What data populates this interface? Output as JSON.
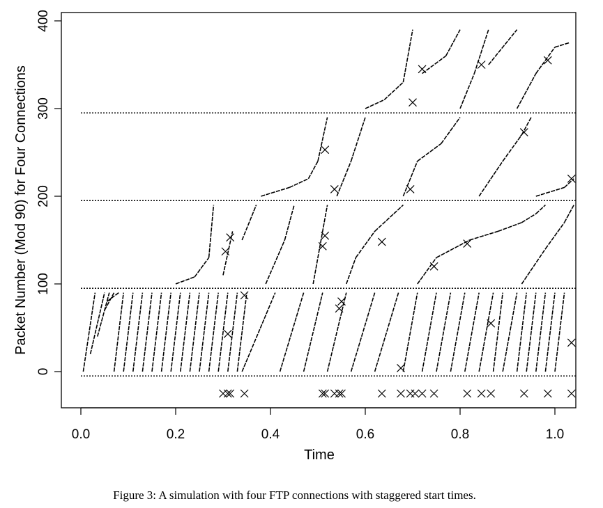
{
  "caption": "Figure 3: A simulation with four FTP connections with staggered start times.",
  "chart_data": {
    "type": "scatter",
    "xlabel": "Time",
    "ylabel": "Packet Number (Mod 90) for Four Connections",
    "xlim": [
      -0.04,
      1.04
    ],
    "ylim": [
      -40,
      405
    ],
    "x_ticks": [
      "0.0",
      "0.2",
      "0.4",
      "0.6",
      "0.8",
      "1.0"
    ],
    "y_ticks": [
      "0",
      "100",
      "200",
      "300",
      "400"
    ],
    "separators_y": [
      -5,
      95,
      195,
      295
    ],
    "drop_marker_y": -25,
    "connections": [
      {
        "offset": 0,
        "bursts": [
          [
            0.005,
            0.0,
            0.03
          ],
          [
            0.02,
            20,
            0.05
          ],
          [
            0.035,
            40,
            0.06
          ],
          [
            0.05,
            70,
            0.07
          ],
          [
            0.055,
            80,
            0.08
          ],
          [
            0.07,
            0,
            0.09
          ],
          [
            0.09,
            0,
            0.11
          ],
          [
            0.11,
            0,
            0.13
          ],
          [
            0.13,
            0,
            0.15
          ],
          [
            0.15,
            0,
            0.17
          ],
          [
            0.17,
            0,
            0.19
          ],
          [
            0.19,
            0,
            0.21
          ],
          [
            0.21,
            0,
            0.23
          ],
          [
            0.23,
            0,
            0.25
          ],
          [
            0.25,
            0,
            0.27
          ],
          [
            0.27,
            0,
            0.29
          ],
          [
            0.29,
            0,
            0.31
          ],
          [
            0.31,
            0,
            0.33
          ],
          [
            0.33,
            0,
            0.35
          ]
        ],
        "slow": [
          [
            0.34,
            0,
            0.41
          ],
          [
            0.42,
            0,
            0.47
          ],
          [
            0.47,
            0,
            0.51
          ],
          [
            0.52,
            0,
            0.56
          ],
          [
            0.57,
            0,
            0.62
          ],
          [
            0.62,
            0,
            0.67
          ],
          [
            0.68,
            0,
            0.71
          ],
          [
            0.72,
            0,
            0.75
          ],
          [
            0.75,
            0,
            0.78
          ],
          [
            0.78,
            0,
            0.81
          ],
          [
            0.81,
            0,
            0.84
          ],
          [
            0.84,
            0,
            0.87
          ],
          [
            0.87,
            0,
            0.89
          ],
          [
            0.89,
            0,
            0.92
          ],
          [
            0.92,
            0,
            0.94
          ],
          [
            0.94,
            0,
            0.96
          ],
          [
            0.96,
            0,
            0.98
          ],
          [
            0.98,
            0,
            1.0
          ],
          [
            1.0,
            0,
            1.02
          ]
        ],
        "drops": [
          [
            0.31,
            43
          ],
          [
            0.345,
            87
          ],
          [
            0.545,
            72
          ],
          [
            0.55,
            80
          ],
          [
            0.675,
            4
          ],
          [
            0.865,
            55
          ],
          [
            1.035,
            33
          ]
        ]
      },
      {
        "offset": 100,
        "segments": [
          [
            0.2,
            100,
            0.24,
            108
          ],
          [
            0.24,
            108,
            0.27,
            130
          ],
          [
            0.27,
            130,
            0.28,
            190
          ],
          [
            0.3,
            110,
            0.32,
            160
          ],
          [
            0.34,
            150,
            0.37,
            190
          ],
          [
            0.39,
            100,
            0.43,
            150
          ],
          [
            0.43,
            150,
            0.45,
            190
          ],
          [
            0.49,
            100,
            0.52,
            190
          ],
          [
            0.56,
            100,
            0.58,
            130
          ],
          [
            0.58,
            130,
            0.62,
            160
          ],
          [
            0.62,
            160,
            0.66,
            180
          ],
          [
            0.66,
            180,
            0.68,
            190
          ],
          [
            0.71,
            100,
            0.75,
            130
          ],
          [
            0.75,
            130,
            0.82,
            150
          ],
          [
            0.82,
            150,
            0.88,
            160
          ],
          [
            0.88,
            160,
            0.93,
            170
          ],
          [
            0.93,
            170,
            0.96,
            180
          ],
          [
            0.96,
            180,
            0.98,
            190
          ],
          [
            0.93,
            100,
            0.98,
            140
          ],
          [
            0.98,
            140,
            1.02,
            170
          ],
          [
            1.02,
            170,
            1.04,
            190
          ]
        ],
        "drops": [
          [
            0.305,
            137
          ],
          [
            0.315,
            153
          ],
          [
            0.51,
            143
          ],
          [
            0.515,
            155
          ],
          [
            0.635,
            148
          ],
          [
            0.815,
            146
          ],
          [
            0.745,
            120
          ]
        ]
      },
      {
        "offset": 200,
        "segments": [
          [
            0.38,
            200,
            0.44,
            210
          ],
          [
            0.44,
            210,
            0.48,
            220
          ],
          [
            0.48,
            220,
            0.5,
            240
          ],
          [
            0.5,
            240,
            0.52,
            290
          ],
          [
            0.54,
            200,
            0.57,
            240
          ],
          [
            0.57,
            240,
            0.6,
            290
          ],
          [
            0.68,
            200,
            0.71,
            240
          ],
          [
            0.71,
            240,
            0.76,
            260
          ],
          [
            0.76,
            260,
            0.8,
            290
          ],
          [
            0.84,
            200,
            0.89,
            240
          ],
          [
            0.89,
            240,
            0.93,
            270
          ],
          [
            0.93,
            270,
            0.95,
            290
          ],
          [
            0.96,
            200,
            1.02,
            210
          ],
          [
            1.02,
            210,
            1.04,
            220
          ]
        ],
        "drops": [
          [
            0.515,
            253
          ],
          [
            0.535,
            208
          ],
          [
            0.695,
            208
          ],
          [
            0.935,
            273
          ],
          [
            1.035,
            220
          ]
        ]
      },
      {
        "offset": 300,
        "segments": [
          [
            0.6,
            300,
            0.64,
            310
          ],
          [
            0.64,
            310,
            0.68,
            330
          ],
          [
            0.68,
            330,
            0.7,
            390
          ],
          [
            0.72,
            340,
            0.77,
            360
          ],
          [
            0.77,
            360,
            0.8,
            390
          ],
          [
            0.8,
            300,
            0.83,
            340
          ],
          [
            0.83,
            340,
            0.86,
            390
          ],
          [
            0.86,
            350,
            0.92,
            390
          ],
          [
            0.92,
            300,
            0.96,
            340
          ],
          [
            0.96,
            340,
            1.0,
            370
          ],
          [
            1.0,
            370,
            1.03,
            375
          ]
        ],
        "drops": [
          [
            0.7,
            307
          ],
          [
            0.72,
            345
          ],
          [
            0.845,
            350
          ],
          [
            0.985,
            355
          ]
        ]
      }
    ],
    "bottom_drops": [
      0.3,
      0.31,
      0.315,
      0.345,
      0.51,
      0.515,
      0.535,
      0.545,
      0.55,
      0.635,
      0.675,
      0.695,
      0.705,
      0.72,
      0.745,
      0.815,
      0.845,
      0.865,
      0.935,
      0.985,
      1.035
    ]
  }
}
